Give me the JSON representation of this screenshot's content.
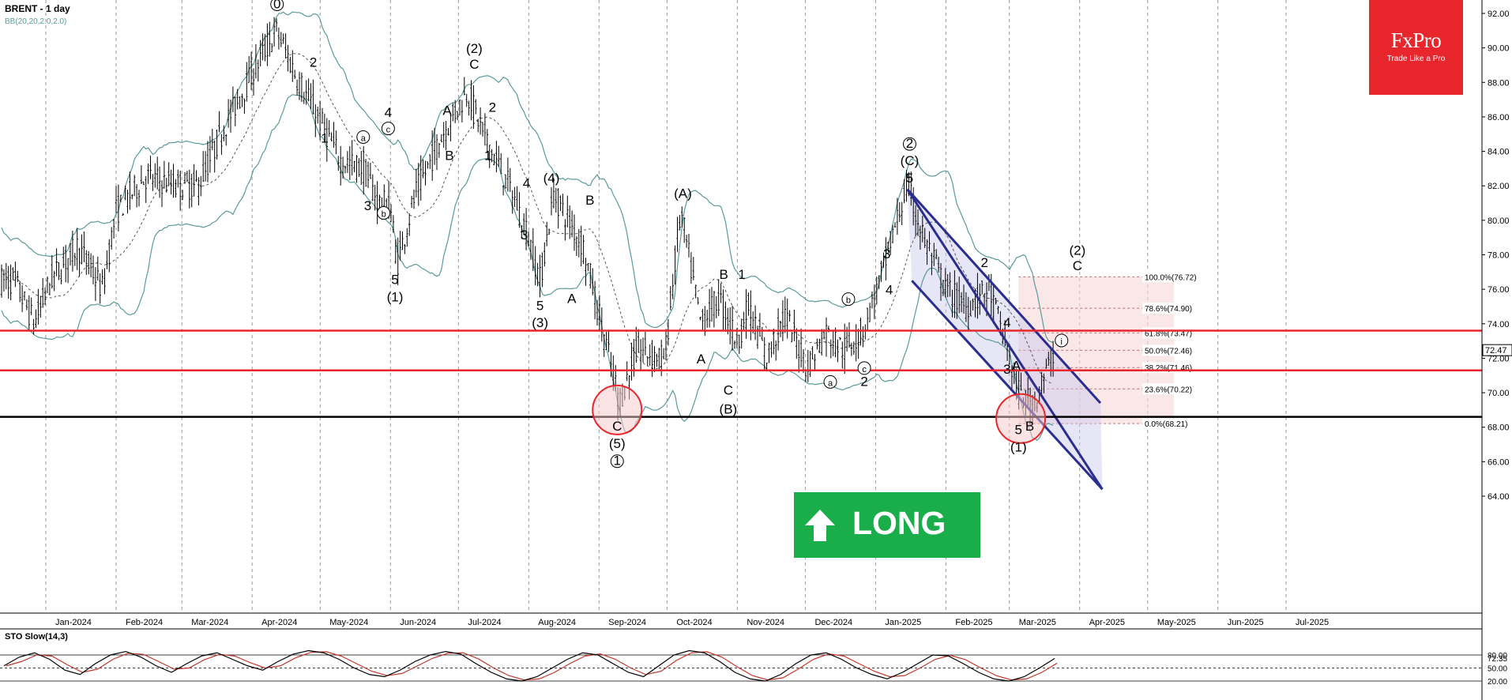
{
  "header": {
    "title": "BRENT - 1 day",
    "bb_label": "BB(20,20,2.0,2.0)",
    "sto_label": "STO Slow(14,3)"
  },
  "brand": {
    "name": "FxPro",
    "tagline": "Trade Like a Pro"
  },
  "signal": {
    "label": "LONG",
    "direction": "up",
    "color": "#1aae4b"
  },
  "colors": {
    "candle": "#000000",
    "bollinger": "#5a9a9a",
    "red_line": "#e8262c",
    "channel": "#2b2e8f",
    "fib_fill": "#f6d9da",
    "sto_k": "#000000",
    "sto_d": "#c0392b"
  },
  "chart_data": [
    {
      "type": "candlestick",
      "title": "BRENT - 1 day",
      "y_axis": {
        "ticks": [
          64.0,
          66.0,
          68.0,
          70.0,
          72.0,
          74.0,
          76.0,
          78.0,
          80.0,
          82.0,
          84.0,
          86.0,
          88.0,
          90.0,
          92.0
        ],
        "labels": [
          "64.00",
          "66.00",
          "68.00",
          "70.00",
          "72.00",
          "74.00",
          "76.00",
          "78.00",
          "80.00",
          "82.00",
          "84.00",
          "86.00",
          "88.00",
          "90.00",
          "92.00"
        ],
        "side": "right"
      },
      "x_axis": {
        "labels": [
          "Jan-2024",
          "Feb-2024",
          "Mar-2024",
          "Apr-2024",
          "May-2024",
          "Jun-2024",
          "Jul-2024",
          "Aug-2024",
          "Sep-2024",
          "Oct-2024",
          "Nov-2024",
          "Dec-2024",
          "Jan-2025",
          "Feb-2025",
          "Mar-2025",
          "Apr-2025",
          "May-2025",
          "Jun-2025",
          "Jul-2025"
        ]
      },
      "last_price": {
        "value": 72.47,
        "label": "72.47"
      },
      "price_path": [
        [
          "2023-12-18",
          76.5
        ],
        [
          "2023-12-27",
          74.0
        ],
        [
          "2024-01-03",
          76.5
        ],
        [
          "2024-01-15",
          78.5
        ],
        [
          "2024-01-26",
          76.0
        ],
        [
          "2024-02-01",
          80.5
        ],
        [
          "2024-02-14",
          82.5
        ],
        [
          "2024-02-28",
          82.0
        ],
        [
          "2024-03-08",
          82.0
        ],
        [
          "2024-03-20",
          85.5
        ],
        [
          "2024-04-05",
          89.5
        ],
        [
          "2024-04-12",
          91.0
        ],
        [
          "2024-04-20",
          88.5
        ],
        [
          "2024-04-28",
          86.5
        ],
        [
          "2024-05-04",
          85.0
        ],
        [
          "2024-05-10",
          83.5
        ],
        [
          "2024-05-20",
          83.0
        ],
        [
          "2024-05-27",
          81.0
        ],
        [
          "2024-06-01",
          80.8
        ],
        [
          "2024-06-04",
          77.5
        ],
        [
          "2024-06-12",
          81.5
        ],
        [
          "2024-06-24",
          85.0
        ],
        [
          "2024-07-05",
          87.5
        ],
        [
          "2024-07-12",
          85.0
        ],
        [
          "2024-07-25",
          81.5
        ],
        [
          "2024-08-01",
          79.0
        ],
        [
          "2024-08-06",
          76.5
        ],
        [
          "2024-08-12",
          81.5
        ],
        [
          "2024-08-25",
          78.5
        ],
        [
          "2024-09-02",
          74.0
        ],
        [
          "2024-09-10",
          69.5
        ],
        [
          "2024-09-18",
          72.5
        ],
        [
          "2024-09-30",
          72.0
        ],
        [
          "2024-10-07",
          80.5
        ],
        [
          "2024-10-16",
          74.0
        ],
        [
          "2024-10-24",
          75.5
        ],
        [
          "2024-11-01",
          73.0
        ],
        [
          "2024-11-06",
          75.0
        ],
        [
          "2024-11-14",
          72.0
        ],
        [
          "2024-11-22",
          74.5
        ],
        [
          "2024-12-02",
          71.5
        ],
        [
          "2024-12-10",
          73.5
        ],
        [
          "2024-12-18",
          72.5
        ],
        [
          "2024-12-26",
          73.5
        ],
        [
          "2025-01-03",
          76.5
        ],
        [
          "2025-01-10",
          79.8
        ],
        [
          "2025-01-15",
          82.0
        ],
        [
          "2025-01-22",
          79.0
        ],
        [
          "2025-02-01",
          76.0
        ],
        [
          "2025-02-10",
          75.0
        ],
        [
          "2025-02-20",
          76.0
        ],
        [
          "2025-02-26",
          73.5
        ],
        [
          "2025-03-05",
          70.0
        ],
        [
          "2025-03-11",
          69.3
        ],
        [
          "2025-03-17",
          71.0
        ],
        [
          "2025-03-21",
          72.5
        ]
      ],
      "horizontal_lines": [
        {
          "price": 73.6,
          "color": "red"
        },
        {
          "price": 71.3,
          "color": "red"
        },
        {
          "price": 68.6,
          "color": "black"
        }
      ],
      "fibonacci": [
        {
          "level": "100.0%",
          "price": 76.72,
          "label": "100.0%(76.72)"
        },
        {
          "level": "78.6%",
          "price": 74.9,
          "label": "78.6%(74.90)"
        },
        {
          "level": "61.8%",
          "price": 73.47,
          "label": "61.8%(73.47)"
        },
        {
          "level": "50.0%",
          "price": 72.46,
          "label": "50.0%(72.46)"
        },
        {
          "level": "38.2%",
          "price": 71.46,
          "label": "38.2%(71.46)"
        },
        {
          "level": "23.6%",
          "price": 70.22,
          "label": "23.6%(70.22)"
        },
        {
          "level": "0.0%",
          "price": 68.21,
          "label": "0.0%(68.21)"
        }
      ],
      "wave_labels": [
        {
          "text": "0",
          "circled": true,
          "date": "2024-04-12",
          "price": 92.3
        },
        {
          "text": "2",
          "date": "2024-04-28",
          "price": 88.9
        },
        {
          "text": "1",
          "date": "2024-05-03",
          "price": 84.5
        },
        {
          "text": "a",
          "circled": true,
          "date": "2024-05-20",
          "price": 84.6
        },
        {
          "text": "4",
          "date": "2024-05-31",
          "price": 86.0
        },
        {
          "text": "c",
          "circled": true,
          "date": "2024-05-31",
          "price": 85.1
        },
        {
          "text": "3",
          "date": "2024-05-22",
          "price": 80.6
        },
        {
          "text": "b",
          "circled": true,
          "date": "2024-05-29",
          "price": 80.2
        },
        {
          "text": "5",
          "date": "2024-06-03",
          "price": 76.3
        },
        {
          "text": "(1)",
          "date": "2024-06-03",
          "price": 75.3
        },
        {
          "text": "(2)",
          "date": "2024-07-08",
          "price": 89.7
        },
        {
          "text": "C",
          "date": "2024-07-08",
          "price": 88.8
        },
        {
          "text": "A",
          "date": "2024-06-26",
          "price": 86.1
        },
        {
          "text": "B",
          "date": "2024-06-27",
          "price": 83.5
        },
        {
          "text": "2",
          "date": "2024-07-16",
          "price": 86.3
        },
        {
          "text": "1",
          "date": "2024-07-14",
          "price": 83.5
        },
        {
          "text": "4",
          "date": "2024-07-31",
          "price": 81.9
        },
        {
          "text": "(4)",
          "date": "2024-08-11",
          "price": 82.2
        },
        {
          "text": "B",
          "date": "2024-08-28",
          "price": 80.9
        },
        {
          "text": "3",
          "date": "2024-07-30",
          "price": 78.9
        },
        {
          "text": "A",
          "date": "2024-08-20",
          "price": 75.2
        },
        {
          "text": "5",
          "date": "2024-08-06",
          "price": 74.8
        },
        {
          "text": "(3)",
          "date": "2024-08-06",
          "price": 73.8
        },
        {
          "text": "C",
          "date": "2024-09-09",
          "price": 67.8
        },
        {
          "text": "(5)",
          "date": "2024-09-09",
          "price": 66.8
        },
        {
          "text": "1",
          "circled": true,
          "date": "2024-09-09",
          "price": 65.8
        },
        {
          "text": "(A)",
          "date": "2024-10-08",
          "price": 81.3
        },
        {
          "text": "B",
          "date": "2024-10-26",
          "price": 76.6
        },
        {
          "text": "1",
          "date": "2024-11-03",
          "price": 76.6
        },
        {
          "text": "A",
          "date": "2024-10-16",
          "price": 71.7
        },
        {
          "text": "C",
          "date": "2024-10-28",
          "price": 69.9
        },
        {
          "text": "(B)",
          "date": "2024-10-28",
          "price": 68.8
        },
        {
          "text": "b",
          "circled": true,
          "date": "2024-12-20",
          "price": 75.2
        },
        {
          "text": "c",
          "circled": true,
          "date": "2024-12-27",
          "price": 71.2
        },
        {
          "text": "a",
          "circled": true,
          "date": "2024-12-12",
          "price": 70.4
        },
        {
          "text": "2",
          "date": "2024-12-27",
          "price": 70.4
        },
        {
          "text": "4",
          "date": "2025-01-07",
          "price": 75.7
        },
        {
          "text": "3",
          "date": "2025-01-06",
          "price": 77.8
        },
        {
          "text": "2",
          "circled": true,
          "date": "2025-01-16",
          "price": 84.2
        },
        {
          "text": "(C)",
          "date": "2025-01-16",
          "price": 83.2
        },
        {
          "text": "5",
          "date": "2025-01-16",
          "price": 82.2
        },
        {
          "text": "2",
          "date": "2025-02-18",
          "price": 77.3
        },
        {
          "text": "4",
          "date": "2025-02-28",
          "price": 73.8
        },
        {
          "text": "3",
          "date": "2025-02-28",
          "price": 71.1
        },
        {
          "text": "A",
          "date": "2025-03-04",
          "price": 71.3
        },
        {
          "text": "5",
          "date": "2025-03-05",
          "price": 67.6
        },
        {
          "text": "B",
          "date": "2025-03-10",
          "price": 67.8
        },
        {
          "text": "(1)",
          "date": "2025-03-05",
          "price": 66.6
        },
        {
          "text": "i",
          "circled": true,
          "date": "2025-03-24",
          "price": 72.8
        },
        {
          "text": "(2)",
          "date": "2025-03-31",
          "price": 78.0
        },
        {
          "text": "C",
          "date": "2025-03-31",
          "price": 77.1
        }
      ]
    },
    {
      "type": "line",
      "title": "STO Slow(14,3)",
      "y_axis": {
        "ticks": [
          20.0,
          50.0,
          72.35,
          80.0
        ],
        "labels": [
          "20.00",
          "50.00",
          "72.35",
          "80.00"
        ],
        "side": "right"
      },
      "last_value": 72.35,
      "series": [
        {
          "values": [
            55,
            75,
            85,
            70,
            45,
            35,
            60,
            80,
            88,
            75,
            55,
            40,
            60,
            78,
            85,
            70,
            55,
            45,
            65,
            82,
            90,
            85,
            70,
            50,
            35,
            30,
            45,
            65,
            80,
            88,
            82,
            60,
            40,
            25,
            20,
            30,
            50,
            70,
            85,
            80,
            60,
            40,
            30,
            55,
            80,
            90,
            85,
            65,
            40,
            25,
            20,
            35,
            60,
            80,
            85,
            70,
            50,
            35,
            25,
            40,
            60,
            80,
            78,
            60,
            40,
            25,
            20,
            30,
            50,
            72
          ]
        }
      ]
    }
  ]
}
